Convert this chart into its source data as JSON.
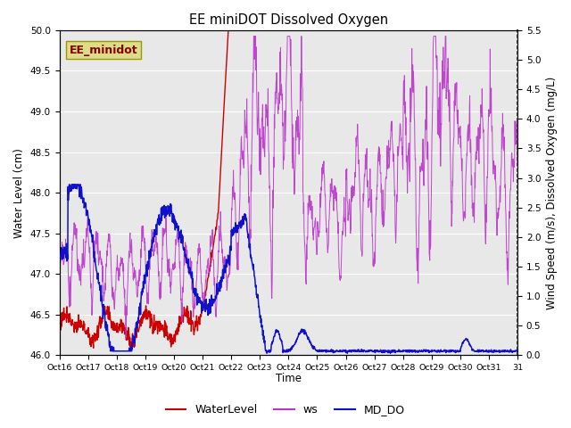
{
  "title": "EE miniDOT Dissolved Oxygen",
  "xlabel": "Time",
  "ylabel_left": "Water Level (cm)",
  "ylabel_right": "Wind Speed (m/s), Dissolved Oxygen (mg/L)",
  "legend_label": "EE_minidot",
  "ylim_left": [
    46.0,
    50.0
  ],
  "ylim_right": [
    0.0,
    5.5
  ],
  "yticks_left": [
    46.0,
    46.5,
    47.0,
    47.5,
    48.0,
    48.5,
    49.0,
    49.5,
    50.0
  ],
  "yticks_right": [
    0.0,
    0.5,
    1.0,
    1.5,
    2.0,
    2.5,
    3.0,
    3.5,
    4.0,
    4.5,
    5.0,
    5.5
  ],
  "xtick_labels": [
    "Oct 16",
    "Oct 17",
    "Oct 18",
    "Oct 19",
    "Oct 20",
    "Oct 21",
    "Oct 22",
    "Oct 23",
    "Oct 24",
    "Oct 25",
    "Oct 26",
    "Oct 27",
    "Oct 28",
    "Oct 29",
    "Oct 30",
    "Oct 31"
  ],
  "plot_bg_color": "#e8e8e8",
  "line_wl_color": "#cc0000",
  "line_ws_color": "#bb33cc",
  "line_do_color": "#1111cc",
  "legend_box_facecolor": "#dddd88",
  "legend_box_edgecolor": "#999900",
  "legend_text_color": "#880000",
  "grid_color": "#ffffff",
  "spine_color": "#555555"
}
